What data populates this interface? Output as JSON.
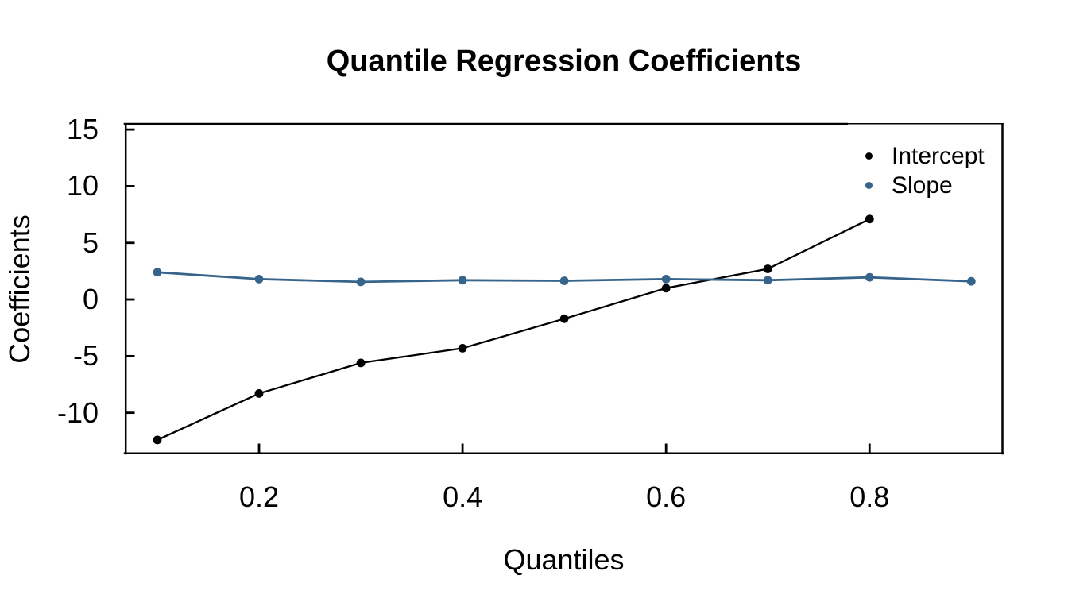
{
  "window": {
    "background_color": "#ffffff",
    "foreground_color": "#000000"
  },
  "chart_data": {
    "type": "line",
    "title": "Quantile Regression Coefficients",
    "xlabel": "Quantiles",
    "ylabel": "Coefficients",
    "xlim": [
      0.068,
      0.931
    ],
    "ylim": [
      -13.6,
      15.5
    ],
    "x_ticks": [
      0.2,
      0.4,
      0.6,
      0.8
    ],
    "x_tick_labels": [
      "0.2",
      "0.4",
      "0.6",
      "0.8"
    ],
    "y_ticks": [
      15,
      10,
      5,
      0,
      -5,
      -10
    ],
    "y_tick_labels": [
      "15",
      "10",
      "5",
      "0",
      "-5",
      "-10"
    ],
    "grid": false,
    "tick_direction": "inside",
    "legend_position": "top-right-inside",
    "series": [
      {
        "name": "Intercept",
        "color": "#000000",
        "marker": "filled-circle",
        "x": [
          0.1,
          0.2,
          0.3,
          0.4,
          0.5,
          0.6,
          0.7,
          0.8
        ],
        "values": [
          -12.4,
          -8.3,
          -5.6,
          -4.3,
          -1.7,
          1.0,
          2.7,
          7.1
        ]
      },
      {
        "name": "Slope",
        "color": "#36648B",
        "marker": "filled-circle",
        "x": [
          0.1,
          0.2,
          0.3,
          0.4,
          0.5,
          0.6,
          0.7,
          0.8,
          0.9
        ],
        "values": [
          2.4,
          1.8,
          1.55,
          1.7,
          1.65,
          1.8,
          1.7,
          1.95,
          1.6
        ]
      }
    ]
  }
}
